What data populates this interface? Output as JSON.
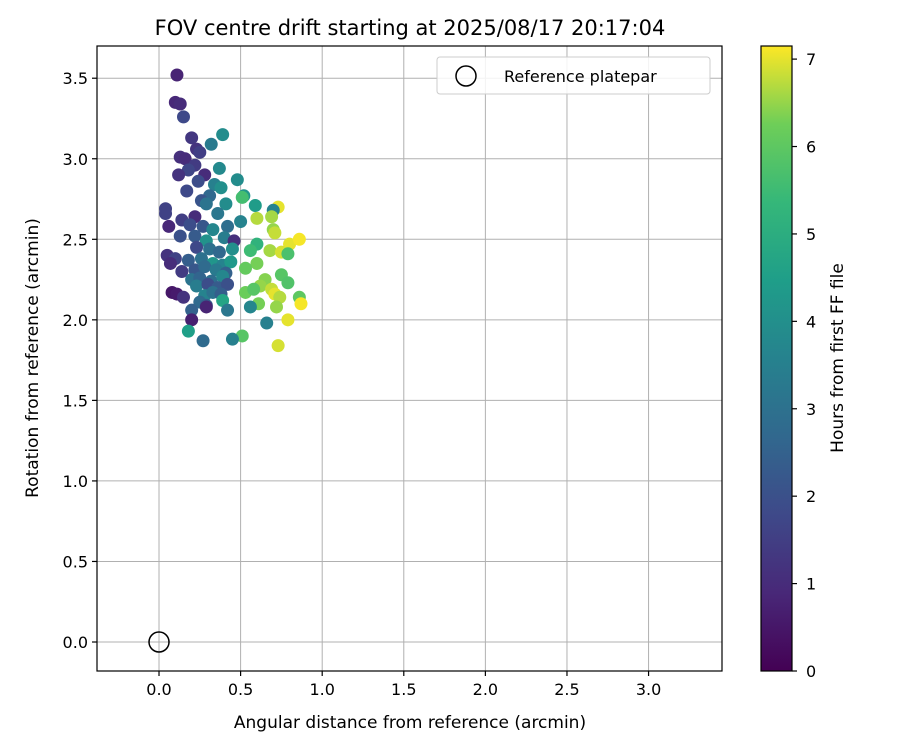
{
  "chart_data": {
    "type": "scatter",
    "title": "FOV centre drift starting at 2025/08/17 20:17:04",
    "xlabel": "Angular distance from reference (arcmin)",
    "ylabel": "Rotation from reference (arcmin)",
    "xlim": [
      -0.38,
      3.45
    ],
    "ylim": [
      -0.18,
      3.7
    ],
    "xticks": [
      0.0,
      0.5,
      1.0,
      1.5,
      2.0,
      2.5,
      3.0
    ],
    "xtick_labels": [
      "0.0",
      "0.5",
      "1.0",
      "1.5",
      "2.0",
      "2.5",
      "3.0"
    ],
    "yticks": [
      0.0,
      0.5,
      1.0,
      1.5,
      2.0,
      2.5,
      3.0,
      3.5
    ],
    "ytick_labels": [
      "0.0",
      "0.5",
      "1.0",
      "1.5",
      "2.0",
      "2.5",
      "3.0",
      "3.5"
    ],
    "grid": true,
    "legend": {
      "placement": "top-right",
      "entries": [
        "Reference platepar"
      ]
    },
    "reference_point": {
      "name": "Reference platepar",
      "x": 0.0,
      "y": 0.0
    },
    "colorbar": {
      "label": "Hours from first FF file",
      "colormap": "viridis",
      "range": [
        0,
        7.15
      ],
      "ticks": [
        0,
        1,
        2,
        3,
        4,
        5,
        6,
        7
      ],
      "tick_labels": [
        "0",
        "1",
        "2",
        "3",
        "4",
        "5",
        "6",
        "7"
      ]
    },
    "points": [
      {
        "x": 0.11,
        "y": 3.52,
        "t": 0.8
      },
      {
        "x": 0.1,
        "y": 3.35,
        "t": 0.9
      },
      {
        "x": 0.13,
        "y": 3.34,
        "t": 1.0
      },
      {
        "x": 0.15,
        "y": 3.26,
        "t": 1.8
      },
      {
        "x": 0.2,
        "y": 3.13,
        "t": 1.3
      },
      {
        "x": 0.39,
        "y": 3.15,
        "t": 3.9
      },
      {
        "x": 0.32,
        "y": 3.09,
        "t": 3.3
      },
      {
        "x": 0.23,
        "y": 3.06,
        "t": 1.2
      },
      {
        "x": 0.25,
        "y": 3.04,
        "t": 1.5
      },
      {
        "x": 0.13,
        "y": 3.01,
        "t": 1.1
      },
      {
        "x": 0.16,
        "y": 3.0,
        "t": 1.0
      },
      {
        "x": 0.22,
        "y": 2.96,
        "t": 1.4
      },
      {
        "x": 0.37,
        "y": 2.94,
        "t": 3.8
      },
      {
        "x": 0.18,
        "y": 2.93,
        "t": 1.7
      },
      {
        "x": 0.12,
        "y": 2.9,
        "t": 1.2
      },
      {
        "x": 0.28,
        "y": 2.9,
        "t": 1.0
      },
      {
        "x": 0.24,
        "y": 2.86,
        "t": 1.9
      },
      {
        "x": 0.48,
        "y": 2.87,
        "t": 3.9
      },
      {
        "x": 0.34,
        "y": 2.84,
        "t": 3.5
      },
      {
        "x": 0.17,
        "y": 2.8,
        "t": 1.8
      },
      {
        "x": 0.38,
        "y": 2.82,
        "t": 4.0
      },
      {
        "x": 0.31,
        "y": 2.77,
        "t": 2.7
      },
      {
        "x": 0.52,
        "y": 2.77,
        "t": 4.2
      },
      {
        "x": 0.26,
        "y": 2.74,
        "t": 2.1
      },
      {
        "x": 0.29,
        "y": 2.72,
        "t": 3.1
      },
      {
        "x": 0.41,
        "y": 2.72,
        "t": 3.9
      },
      {
        "x": 0.51,
        "y": 2.76,
        "t": 5.6
      },
      {
        "x": 0.59,
        "y": 2.71,
        "t": 4.4
      },
      {
        "x": 0.73,
        "y": 2.7,
        "t": 7.0
      },
      {
        "x": 0.7,
        "y": 2.68,
        "t": 3.6
      },
      {
        "x": 0.04,
        "y": 2.69,
        "t": 1.6
      },
      {
        "x": 0.04,
        "y": 2.66,
        "t": 1.6
      },
      {
        "x": 0.22,
        "y": 2.64,
        "t": 1.0
      },
      {
        "x": 0.36,
        "y": 2.66,
        "t": 3.2
      },
      {
        "x": 0.14,
        "y": 2.62,
        "t": 1.5
      },
      {
        "x": 0.19,
        "y": 2.59,
        "t": 1.9
      },
      {
        "x": 0.5,
        "y": 2.61,
        "t": 3.6
      },
      {
        "x": 0.6,
        "y": 2.63,
        "t": 6.7
      },
      {
        "x": 0.69,
        "y": 2.64,
        "t": 6.6
      },
      {
        "x": 0.06,
        "y": 2.58,
        "t": 0.9
      },
      {
        "x": 0.27,
        "y": 2.58,
        "t": 2.2
      },
      {
        "x": 0.33,
        "y": 2.56,
        "t": 3.7
      },
      {
        "x": 0.42,
        "y": 2.58,
        "t": 2.9
      },
      {
        "x": 0.7,
        "y": 2.56,
        "t": 6.5
      },
      {
        "x": 0.71,
        "y": 2.54,
        "t": 6.8
      },
      {
        "x": 0.13,
        "y": 2.52,
        "t": 2.0
      },
      {
        "x": 0.22,
        "y": 2.52,
        "t": 2.3
      },
      {
        "x": 0.29,
        "y": 2.49,
        "t": 4.1
      },
      {
        "x": 0.4,
        "y": 2.51,
        "t": 3.4
      },
      {
        "x": 0.46,
        "y": 2.49,
        "t": 1.1
      },
      {
        "x": 0.6,
        "y": 2.47,
        "t": 5.2
      },
      {
        "x": 0.56,
        "y": 2.43,
        "t": 5.5
      },
      {
        "x": 0.8,
        "y": 2.47,
        "t": 7.0
      },
      {
        "x": 0.86,
        "y": 2.5,
        "t": 7.1
      },
      {
        "x": 0.23,
        "y": 2.45,
        "t": 1.8
      },
      {
        "x": 0.31,
        "y": 2.44,
        "t": 3.0
      },
      {
        "x": 0.37,
        "y": 2.42,
        "t": 2.7
      },
      {
        "x": 0.45,
        "y": 2.44,
        "t": 4.0
      },
      {
        "x": 0.68,
        "y": 2.43,
        "t": 6.6
      },
      {
        "x": 0.75,
        "y": 2.42,
        "t": 6.9
      },
      {
        "x": 0.79,
        "y": 2.41,
        "t": 5.7
      },
      {
        "x": 0.05,
        "y": 2.4,
        "t": 1.2
      },
      {
        "x": 0.1,
        "y": 2.38,
        "t": 1.6
      },
      {
        "x": 0.18,
        "y": 2.37,
        "t": 2.4
      },
      {
        "x": 0.26,
        "y": 2.38,
        "t": 3.0
      },
      {
        "x": 0.33,
        "y": 2.35,
        "t": 4.2
      },
      {
        "x": 0.39,
        "y": 2.34,
        "t": 3.6
      },
      {
        "x": 0.44,
        "y": 2.36,
        "t": 4.3
      },
      {
        "x": 0.6,
        "y": 2.35,
        "t": 6.3
      },
      {
        "x": 0.07,
        "y": 2.35,
        "t": 1.0
      },
      {
        "x": 0.14,
        "y": 2.3,
        "t": 1.4
      },
      {
        "x": 0.22,
        "y": 2.31,
        "t": 2.2
      },
      {
        "x": 0.28,
        "y": 2.33,
        "t": 2.8
      },
      {
        "x": 0.35,
        "y": 2.31,
        "t": 3.3
      },
      {
        "x": 0.41,
        "y": 2.29,
        "t": 2.5
      },
      {
        "x": 0.53,
        "y": 2.32,
        "t": 6.1
      },
      {
        "x": 0.75,
        "y": 2.28,
        "t": 5.9
      },
      {
        "x": 0.2,
        "y": 2.25,
        "t": 3.1
      },
      {
        "x": 0.25,
        "y": 2.26,
        "t": 2.6
      },
      {
        "x": 0.32,
        "y": 2.24,
        "t": 2.9
      },
      {
        "x": 0.39,
        "y": 2.27,
        "t": 3.7
      },
      {
        "x": 0.65,
        "y": 2.25,
        "t": 6.4
      },
      {
        "x": 0.79,
        "y": 2.23,
        "t": 5.8
      },
      {
        "x": 0.23,
        "y": 2.21,
        "t": 3.4
      },
      {
        "x": 0.3,
        "y": 2.22,
        "t": 1.9
      },
      {
        "x": 0.36,
        "y": 2.2,
        "t": 2.3
      },
      {
        "x": 0.42,
        "y": 2.22,
        "t": 2.0
      },
      {
        "x": 0.62,
        "y": 2.21,
        "t": 6.5
      },
      {
        "x": 0.69,
        "y": 2.19,
        "t": 6.8
      },
      {
        "x": 0.08,
        "y": 2.17,
        "t": 0.5
      },
      {
        "x": 0.11,
        "y": 2.16,
        "t": 0.6
      },
      {
        "x": 0.15,
        "y": 2.14,
        "t": 1.2
      },
      {
        "x": 0.28,
        "y": 2.15,
        "t": 3.6
      },
      {
        "x": 0.33,
        "y": 2.17,
        "t": 3.0
      },
      {
        "x": 0.38,
        "y": 2.16,
        "t": 2.4
      },
      {
        "x": 0.53,
        "y": 2.17,
        "t": 6.2
      },
      {
        "x": 0.58,
        "y": 2.19,
        "t": 5.9
      },
      {
        "x": 0.71,
        "y": 2.16,
        "t": 7.0
      },
      {
        "x": 0.74,
        "y": 2.14,
        "t": 6.7
      },
      {
        "x": 0.86,
        "y": 2.14,
        "t": 6.0
      },
      {
        "x": 0.25,
        "y": 2.11,
        "t": 2.8
      },
      {
        "x": 0.29,
        "y": 2.09,
        "t": 2.4
      },
      {
        "x": 0.39,
        "y": 2.12,
        "t": 4.7
      },
      {
        "x": 0.61,
        "y": 2.1,
        "t": 6.3
      },
      {
        "x": 0.87,
        "y": 2.1,
        "t": 7.1
      },
      {
        "x": 0.2,
        "y": 2.06,
        "t": 2.5
      },
      {
        "x": 0.29,
        "y": 2.08,
        "t": 0.8
      },
      {
        "x": 0.42,
        "y": 2.06,
        "t": 3.2
      },
      {
        "x": 0.56,
        "y": 2.08,
        "t": 3.7
      },
      {
        "x": 0.72,
        "y": 2.08,
        "t": 6.5
      },
      {
        "x": 0.2,
        "y": 2.0,
        "t": 0.7
      },
      {
        "x": 0.66,
        "y": 1.98,
        "t": 3.5
      },
      {
        "x": 0.79,
        "y": 2.0,
        "t": 7.0
      },
      {
        "x": 0.18,
        "y": 1.93,
        "t": 4.5
      },
      {
        "x": 0.51,
        "y": 1.9,
        "t": 5.9
      },
      {
        "x": 0.27,
        "y": 1.87,
        "t": 2.8
      },
      {
        "x": 0.45,
        "y": 1.88,
        "t": 3.5
      },
      {
        "x": 0.73,
        "y": 1.84,
        "t": 6.9
      }
    ]
  }
}
